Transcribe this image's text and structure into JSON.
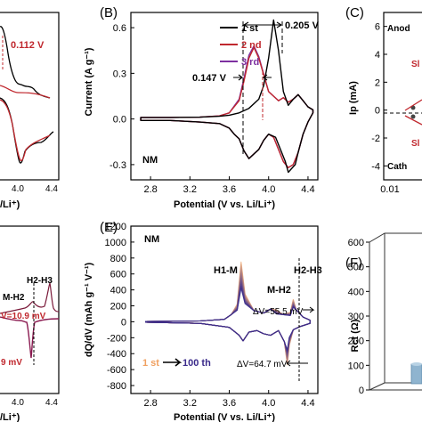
{
  "chart_data": [
    {
      "panel": "A",
      "type": "line",
      "ticks": [
        "4.0",
        "4.4"
      ],
      "xlabel": "/Li⁺)",
      "annotations": [
        "0.112 V"
      ],
      "colors": {
        "first": "#000000",
        "second": "#c0282e"
      }
    },
    {
      "panel": "B",
      "label": "(B)",
      "type": "line",
      "sample": "NM",
      "xlabel": "Potential (V vs. Li/Li⁺)",
      "ylabel": "Current (A g⁻¹)",
      "xlim": [
        2.6,
        4.5
      ],
      "ylim": [
        -0.4,
        0.7
      ],
      "x_ticks": [
        "2.8",
        "3.2",
        "3.6",
        "4.0",
        "4.4"
      ],
      "y_ticks": [
        "0.6",
        "0.3",
        "0.0",
        "-0.3"
      ],
      "legend_placement": "top-left",
      "annotations": [
        "0.205 V",
        "0.147 V"
      ],
      "series": [
        {
          "name": "1 st",
          "color": "#000000",
          "x": [
            2.7,
            3.0,
            3.3,
            3.5,
            3.6,
            3.7,
            3.8,
            3.9,
            3.95,
            4.0,
            4.05,
            4.1,
            4.15,
            4.2,
            4.25,
            4.3,
            4.35,
            4.4,
            4.45
          ],
          "y": [
            0.01,
            0.01,
            0.012,
            0.018,
            0.025,
            0.04,
            0.07,
            0.13,
            0.22,
            0.4,
            0.65,
            0.45,
            0.18,
            0.09,
            0.13,
            0.16,
            0.12,
            0.08,
            0.06
          ]
        },
        {
          "name": "2 nd",
          "color": "#c0282e",
          "x": [
            2.7,
            3.0,
            3.3,
            3.5,
            3.6,
            3.7,
            3.75,
            3.8,
            3.85,
            3.9,
            4.0,
            4.1,
            4.15,
            4.2,
            4.25,
            4.3,
            4.35,
            4.4,
            4.45
          ],
          "y": [
            0.01,
            0.01,
            0.012,
            0.02,
            0.04,
            0.12,
            0.25,
            0.4,
            0.47,
            0.4,
            0.18,
            0.12,
            0.14,
            0.11,
            0.13,
            0.16,
            0.12,
            0.08,
            0.06
          ]
        },
        {
          "name": "3 rd",
          "color": "#7d2fa0",
          "x": [
            2.7,
            3.0,
            3.3,
            3.5,
            3.6,
            3.7,
            3.75,
            3.8,
            3.85,
            3.9,
            4.0,
            4.1,
            4.15,
            4.2,
            4.25,
            4.3,
            4.35,
            4.4,
            4.45
          ],
          "y": [
            0.01,
            0.01,
            0.012,
            0.02,
            0.04,
            0.13,
            0.27,
            0.42,
            0.48,
            0.41,
            0.18,
            0.12,
            0.14,
            0.11,
            0.13,
            0.16,
            0.12,
            0.08,
            0.06
          ]
        }
      ],
      "cathodic": {
        "x": [
          4.45,
          4.4,
          4.35,
          4.3,
          4.25,
          4.2,
          4.15,
          4.1,
          4.05,
          4.0,
          3.95,
          3.9,
          3.8,
          3.75,
          3.7,
          3.65,
          3.6,
          3.5,
          3.3,
          3.0,
          2.7
        ],
        "y": [
          0.04,
          -0.02,
          -0.1,
          -0.22,
          -0.3,
          -0.32,
          -0.28,
          -0.2,
          -0.12,
          -0.1,
          -0.14,
          -0.2,
          -0.26,
          -0.21,
          -0.13,
          -0.1,
          -0.06,
          -0.03,
          -0.02,
          -0.01,
          -0.01
        ],
        "first_shift": {
          "x": 4.2,
          "y": -0.35
        }
      }
    },
    {
      "panel": "C",
      "label": "(C)",
      "type": "scatter",
      "ylabel": "Ip (mA)",
      "y_ticks": [
        "6",
        "4",
        "2",
        "0",
        "-2",
        "-4"
      ],
      "x_ticks": [
        "0.01"
      ],
      "texts": [
        "Anod",
        "Sl",
        "Sl",
        "Cath"
      ]
    },
    {
      "panel": "D",
      "type": "line",
      "ticks": [
        "4.0",
        "4.4"
      ],
      "xlabel": "/Li⁺)",
      "annotations": [
        "H2-H3",
        "M-H2",
        "V=10.9 mV",
        "9 mV"
      ]
    },
    {
      "panel": "E",
      "label": "(E)",
      "type": "line",
      "sample": "NM",
      "xlabel": "Potential (V vs. Li/Li⁺)",
      "ylabel": "dQ/dV (mAh g⁻¹ V⁻¹)",
      "xlim": [
        2.6,
        4.5
      ],
      "ylim": [
        -900,
        1200
      ],
      "x_ticks": [
        "2.8",
        "3.2",
        "3.6",
        "4.0",
        "4.4"
      ],
      "y_ticks": [
        "1200",
        "1000",
        "800",
        "600",
        "400",
        "200",
        "0",
        "-200",
        "-400",
        "-600",
        "-800"
      ],
      "annotations": [
        "H1-M",
        "M-H2",
        "H2-H3",
        "ΔV=55.5 mV",
        "ΔV=64.7 mV"
      ],
      "legend": {
        "from": "1 st",
        "to": "100 th"
      },
      "colors": {
        "first": "#f0b080",
        "last": "#3a2a8a"
      }
    },
    {
      "panel": "F",
      "label": "(F)",
      "type": "bar",
      "ylabel": "Rct (Ω)",
      "y_ticks": [
        "600",
        "500",
        "400",
        "300",
        "200",
        "100",
        "0"
      ]
    }
  ]
}
